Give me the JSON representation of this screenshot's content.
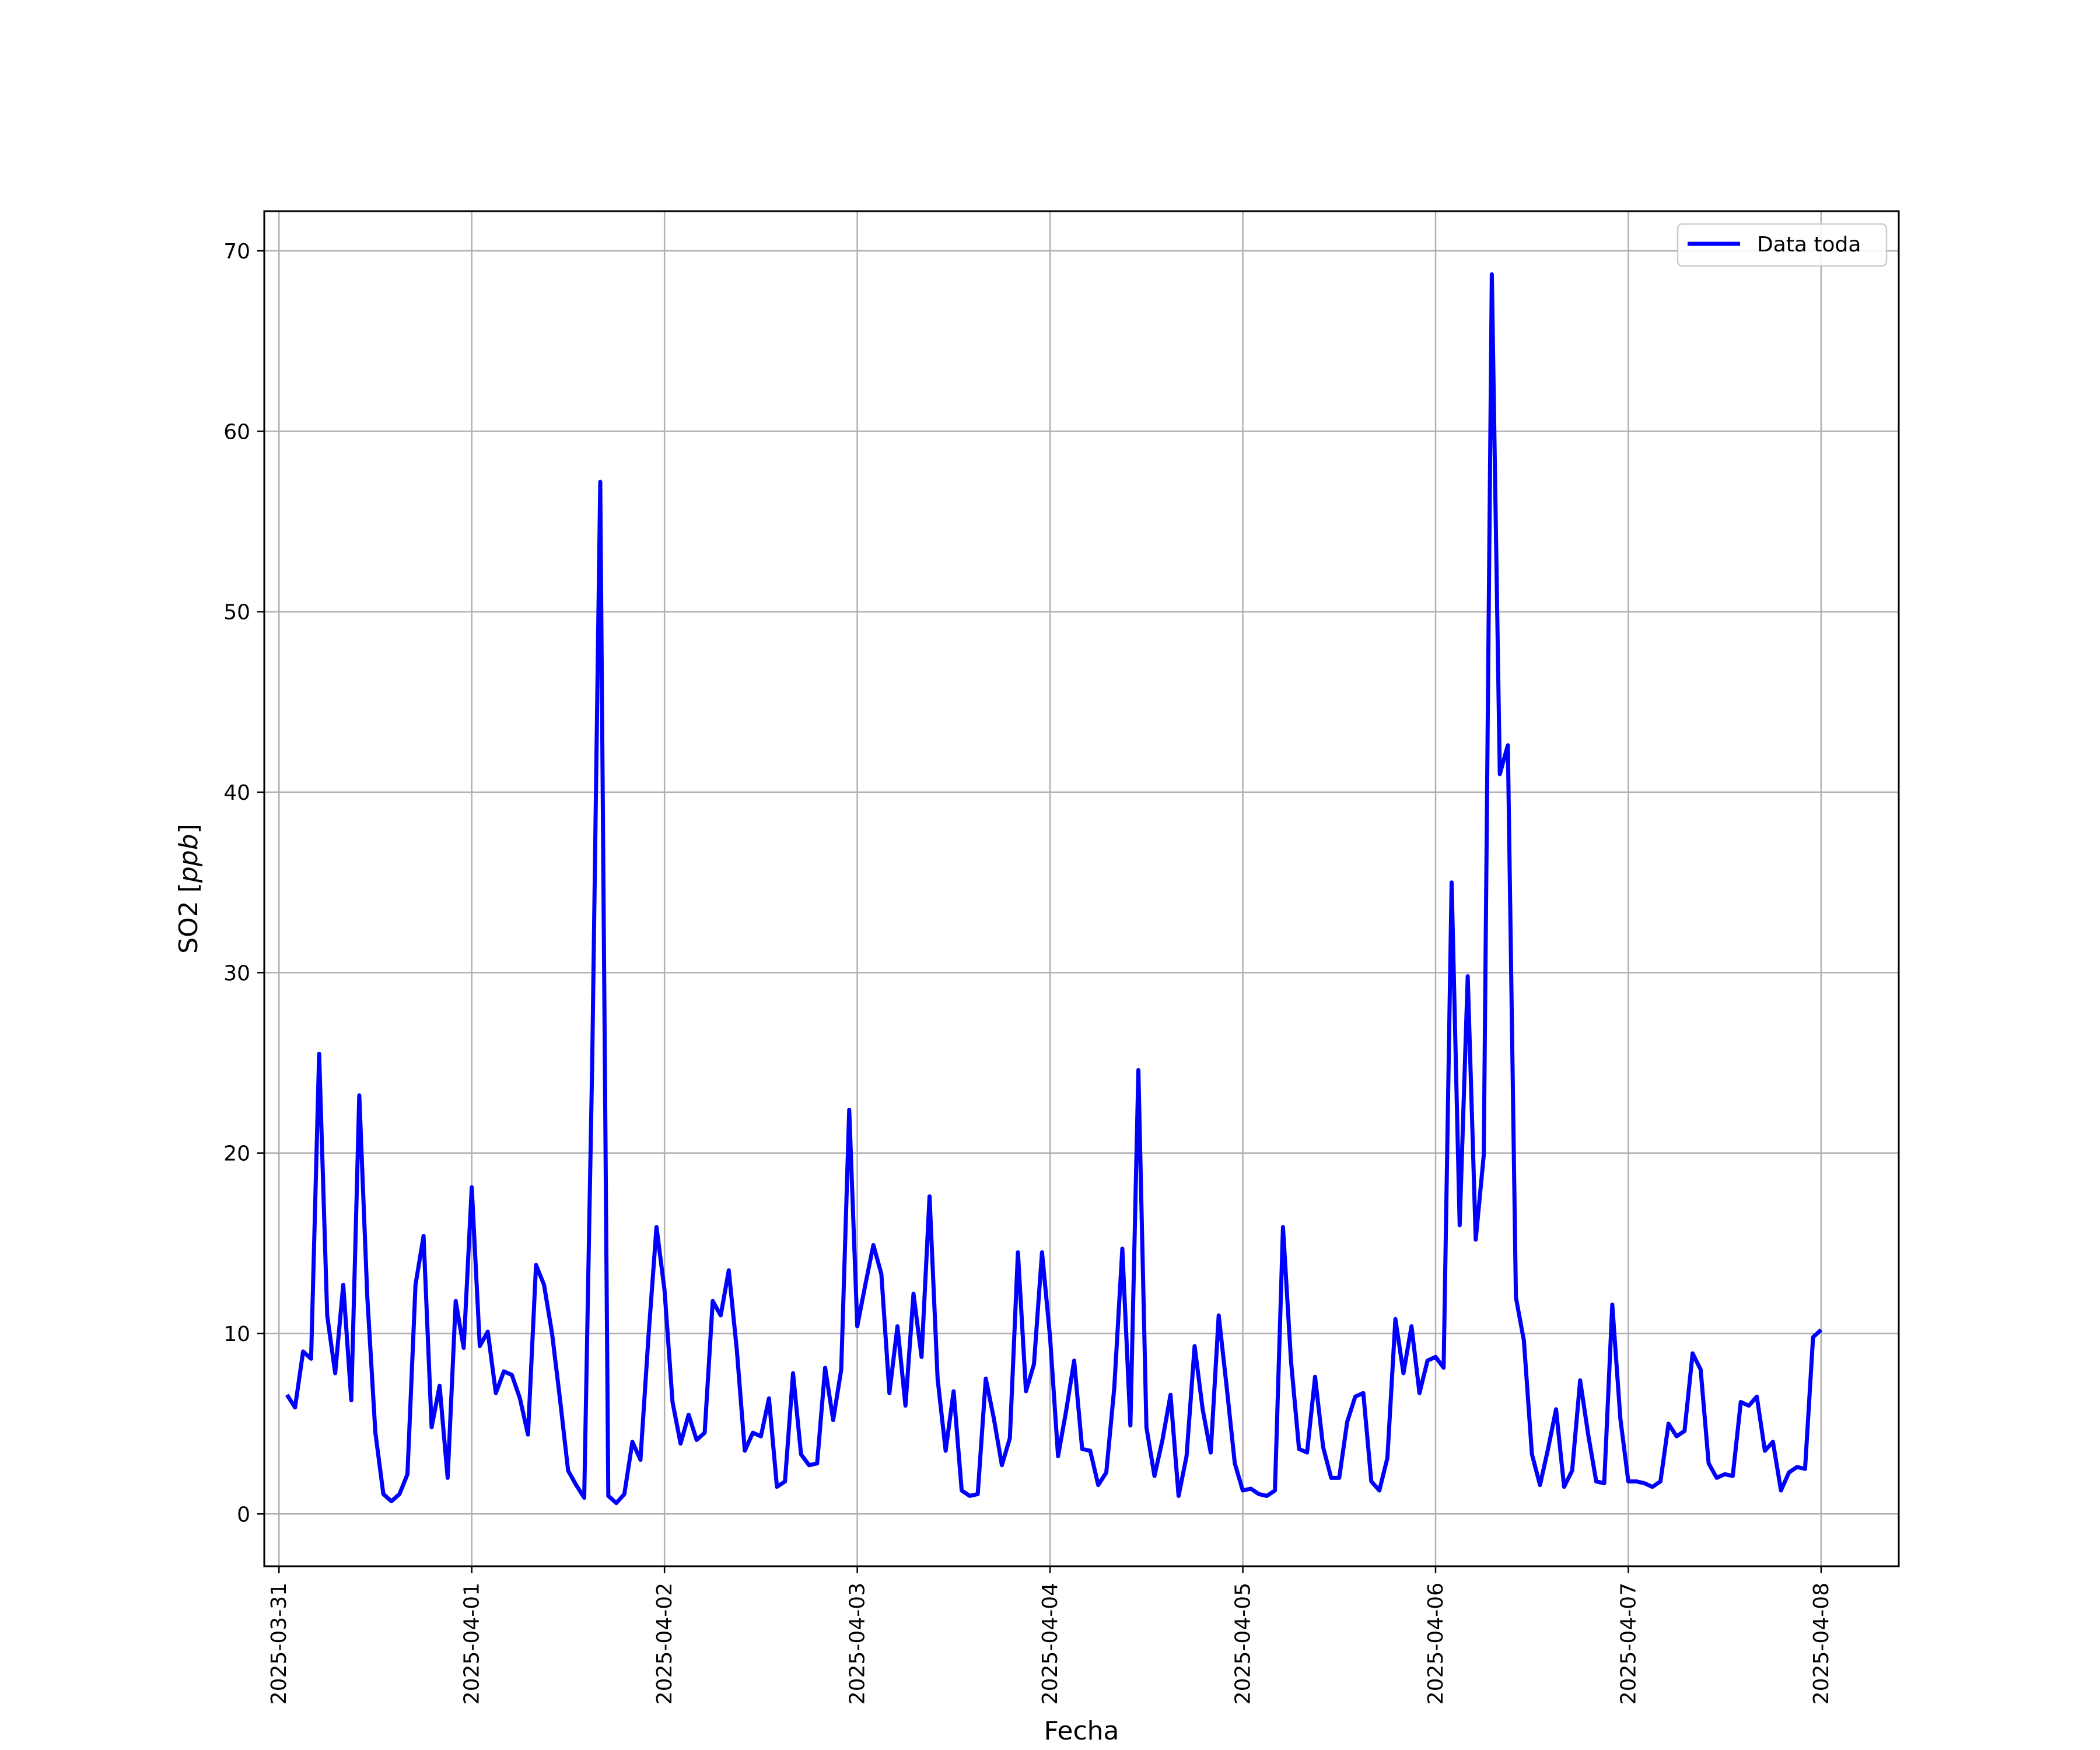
{
  "chart_data": {
    "type": "line",
    "title": "",
    "xlabel": "Fecha",
    "ylabel_text": "SO2 [",
    "ylabel_unit": "ppb",
    "ylabel_close": "]",
    "x_ticks": [
      "2025-03-31",
      "2025-04-01",
      "2025-04-02",
      "2025-04-03",
      "2025-04-04",
      "2025-04-05",
      "2025-04-06",
      "2025-04-07",
      "2025-04-08"
    ],
    "y_ticks": [
      0,
      10,
      20,
      30,
      40,
      50,
      60,
      70
    ],
    "ylim": [
      -2.9,
      72.2
    ],
    "xlim": [
      "2025-03-30T22:10",
      "2025-04-08T09:40"
    ],
    "grid": true,
    "legend_position": "top-right",
    "series": [
      {
        "name": "Data toda",
        "color": "#0000ff",
        "x": [
          "2025-03-31T01:00",
          "2025-03-31T02:00",
          "2025-03-31T03:00",
          "2025-03-31T04:00",
          "2025-03-31T05:00",
          "2025-03-31T06:00",
          "2025-03-31T07:00",
          "2025-03-31T08:00",
          "2025-03-31T09:00",
          "2025-03-31T10:00",
          "2025-03-31T11:00",
          "2025-03-31T12:00",
          "2025-03-31T13:00",
          "2025-03-31T14:00",
          "2025-03-31T15:00",
          "2025-03-31T16:00",
          "2025-03-31T17:00",
          "2025-03-31T18:00",
          "2025-03-31T19:00",
          "2025-03-31T20:00",
          "2025-03-31T21:00",
          "2025-03-31T22:00",
          "2025-03-31T23:00",
          "2025-04-01T00:00",
          "2025-04-01T01:00",
          "2025-04-01T02:00",
          "2025-04-01T03:00",
          "2025-04-01T04:00",
          "2025-04-01T05:00",
          "2025-04-01T06:00",
          "2025-04-01T07:00",
          "2025-04-01T08:00",
          "2025-04-01T09:00",
          "2025-04-01T10:00",
          "2025-04-01T11:00",
          "2025-04-01T12:00",
          "2025-04-01T13:00",
          "2025-04-01T14:00",
          "2025-04-01T15:00",
          "2025-04-01T16:00",
          "2025-04-01T17:00",
          "2025-04-01T18:00",
          "2025-04-01T19:00",
          "2025-04-01T20:00",
          "2025-04-01T21:00",
          "2025-04-01T22:00",
          "2025-04-01T23:00",
          "2025-04-02T00:00",
          "2025-04-02T01:00",
          "2025-04-02T02:00",
          "2025-04-02T03:00",
          "2025-04-02T04:00",
          "2025-04-02T05:00",
          "2025-04-02T06:00",
          "2025-04-02T07:00",
          "2025-04-02T08:00",
          "2025-04-02T09:00",
          "2025-04-02T10:00",
          "2025-04-02T11:00",
          "2025-04-02T12:00",
          "2025-04-02T13:00",
          "2025-04-02T14:00",
          "2025-04-02T15:00",
          "2025-04-02T16:00",
          "2025-04-02T17:00",
          "2025-04-02T18:00",
          "2025-04-02T19:00",
          "2025-04-02T20:00",
          "2025-04-02T21:00",
          "2025-04-02T22:00",
          "2025-04-02T23:00",
          "2025-04-03T00:00",
          "2025-04-03T01:00",
          "2025-04-03T02:00",
          "2025-04-03T03:00",
          "2025-04-03T04:00",
          "2025-04-03T05:00",
          "2025-04-03T06:00",
          "2025-04-03T07:00",
          "2025-04-03T08:00",
          "2025-04-03T09:00",
          "2025-04-03T10:00",
          "2025-04-03T11:00",
          "2025-04-03T12:00",
          "2025-04-03T13:00",
          "2025-04-03T14:00",
          "2025-04-03T15:00",
          "2025-04-03T16:00",
          "2025-04-03T17:00",
          "2025-04-03T18:00",
          "2025-04-03T19:00",
          "2025-04-03T20:00",
          "2025-04-03T21:00",
          "2025-04-03T22:00",
          "2025-04-03T23:00",
          "2025-04-04T00:00",
          "2025-04-04T01:00",
          "2025-04-04T02:00",
          "2025-04-04T03:00",
          "2025-04-04T04:00",
          "2025-04-04T05:00",
          "2025-04-04T06:00",
          "2025-04-04T07:00",
          "2025-04-04T08:00",
          "2025-04-04T09:00",
          "2025-04-04T10:00",
          "2025-04-04T11:00",
          "2025-04-04T12:00",
          "2025-04-04T13:00",
          "2025-04-04T14:00",
          "2025-04-04T15:00",
          "2025-04-04T16:00",
          "2025-04-04T17:00",
          "2025-04-04T18:00",
          "2025-04-04T19:00",
          "2025-04-04T20:00",
          "2025-04-04T21:00",
          "2025-04-04T22:00",
          "2025-04-04T23:00",
          "2025-04-05T00:00",
          "2025-04-05T01:00",
          "2025-04-05T02:00",
          "2025-04-05T03:00",
          "2025-04-05T04:00",
          "2025-04-05T05:00",
          "2025-04-05T06:00",
          "2025-04-05T07:00",
          "2025-04-05T08:00",
          "2025-04-05T09:00",
          "2025-04-05T10:00",
          "2025-04-05T11:00",
          "2025-04-05T12:00",
          "2025-04-05T13:00",
          "2025-04-05T14:00",
          "2025-04-05T15:00",
          "2025-04-05T16:00",
          "2025-04-05T17:00",
          "2025-04-05T18:00",
          "2025-04-05T19:00",
          "2025-04-05T20:00",
          "2025-04-05T21:00",
          "2025-04-05T22:00",
          "2025-04-05T23:00",
          "2025-04-06T00:00",
          "2025-04-06T01:00",
          "2025-04-06T02:00",
          "2025-04-06T03:00",
          "2025-04-06T04:00",
          "2025-04-06T05:00",
          "2025-04-06T06:00",
          "2025-04-06T07:00",
          "2025-04-06T08:00",
          "2025-04-06T09:00",
          "2025-04-06T10:00",
          "2025-04-06T11:00",
          "2025-04-06T12:00",
          "2025-04-06T13:00",
          "2025-04-06T14:00",
          "2025-04-06T15:00",
          "2025-04-06T16:00",
          "2025-04-06T17:00",
          "2025-04-06T18:00",
          "2025-04-06T19:00",
          "2025-04-06T20:00",
          "2025-04-06T21:00",
          "2025-04-06T22:00",
          "2025-04-06T23:00",
          "2025-04-07T00:00",
          "2025-04-07T01:00",
          "2025-04-07T02:00",
          "2025-04-07T03:00",
          "2025-04-07T04:00",
          "2025-04-07T05:00",
          "2025-04-07T06:00",
          "2025-04-07T07:00",
          "2025-04-07T08:00",
          "2025-04-07T09:00",
          "2025-04-07T10:00",
          "2025-04-07T11:00",
          "2025-04-07T12:00",
          "2025-04-07T13:00",
          "2025-04-07T14:00",
          "2025-04-07T15:00",
          "2025-04-07T16:00",
          "2025-04-07T17:00",
          "2025-04-07T18:00",
          "2025-04-07T19:00",
          "2025-04-07T20:00",
          "2025-04-07T21:00",
          "2025-04-07T22:00",
          "2025-04-07T23:00",
          "2025-04-08T00:00"
        ],
        "values": [
          6.6,
          5.9,
          9.0,
          8.6,
          25.5,
          11.0,
          7.8,
          12.7,
          6.3,
          23.2,
          12.0,
          4.5,
          1.1,
          0.7,
          1.1,
          2.2,
          12.7,
          15.4,
          4.8,
          7.1,
          2.0,
          11.8,
          9.2,
          18.1,
          9.3,
          10.1,
          6.7,
          7.9,
          7.7,
          6.4,
          4.4,
          13.8,
          12.7,
          10.0,
          6.3,
          2.4,
          1.6,
          0.9,
          25.0,
          57.2,
          1.0,
          0.6,
          1.1,
          4.0,
          3.0,
          9.8,
          15.9,
          12.4,
          6.2,
          3.9,
          5.5,
          4.1,
          4.5,
          11.8,
          11.0,
          13.5,
          9.1,
          3.5,
          4.5,
          4.3,
          6.4,
          1.5,
          1.8,
          7.8,
          3.3,
          2.7,
          2.8,
          8.1,
          5.2,
          8.0,
          22.4,
          10.4,
          12.7,
          14.9,
          13.3,
          6.7,
          10.4,
          6.0,
          12.2,
          8.7,
          17.6,
          7.5,
          3.5,
          6.8,
          1.3,
          1.0,
          1.1,
          7.5,
          5.3,
          2.7,
          4.2,
          14.5,
          6.8,
          8.3,
          14.5,
          9.8,
          3.2,
          5.7,
          8.5,
          3.6,
          3.5,
          1.6,
          2.3,
          7.0,
          14.7,
          4.9,
          24.6,
          4.8,
          2.1,
          4.1,
          6.6,
          1.0,
          3.2,
          9.3,
          5.8,
          3.4,
          11.0,
          7.0,
          2.8,
          1.3,
          1.4,
          1.1,
          1.0,
          1.3,
          15.9,
          8.5,
          3.6,
          3.4,
          7.6,
          3.7,
          2.0,
          2.0,
          5.1,
          6.5,
          6.7,
          1.8,
          1.3,
          3.1,
          10.8,
          7.8,
          10.4,
          6.7,
          8.5,
          8.7,
          8.1,
          35.0,
          16.0,
          29.8,
          15.2,
          19.9,
          68.7,
          41.0,
          42.6,
          12.0,
          9.6,
          3.3,
          1.6,
          3.6,
          5.8,
          1.5,
          2.4,
          7.4,
          4.4,
          1.8,
          1.7,
          11.6,
          5.3,
          1.8,
          1.8,
          1.7,
          1.5,
          1.8,
          5.0,
          4.3,
          4.6,
          8.9,
          8.0,
          2.8,
          2.0,
          2.2,
          2.1,
          6.2,
          6.0,
          6.5,
          3.5,
          4.0,
          1.3,
          2.3,
          2.6,
          2.5,
          9.8,
          10.2
        ]
      }
    ]
  }
}
